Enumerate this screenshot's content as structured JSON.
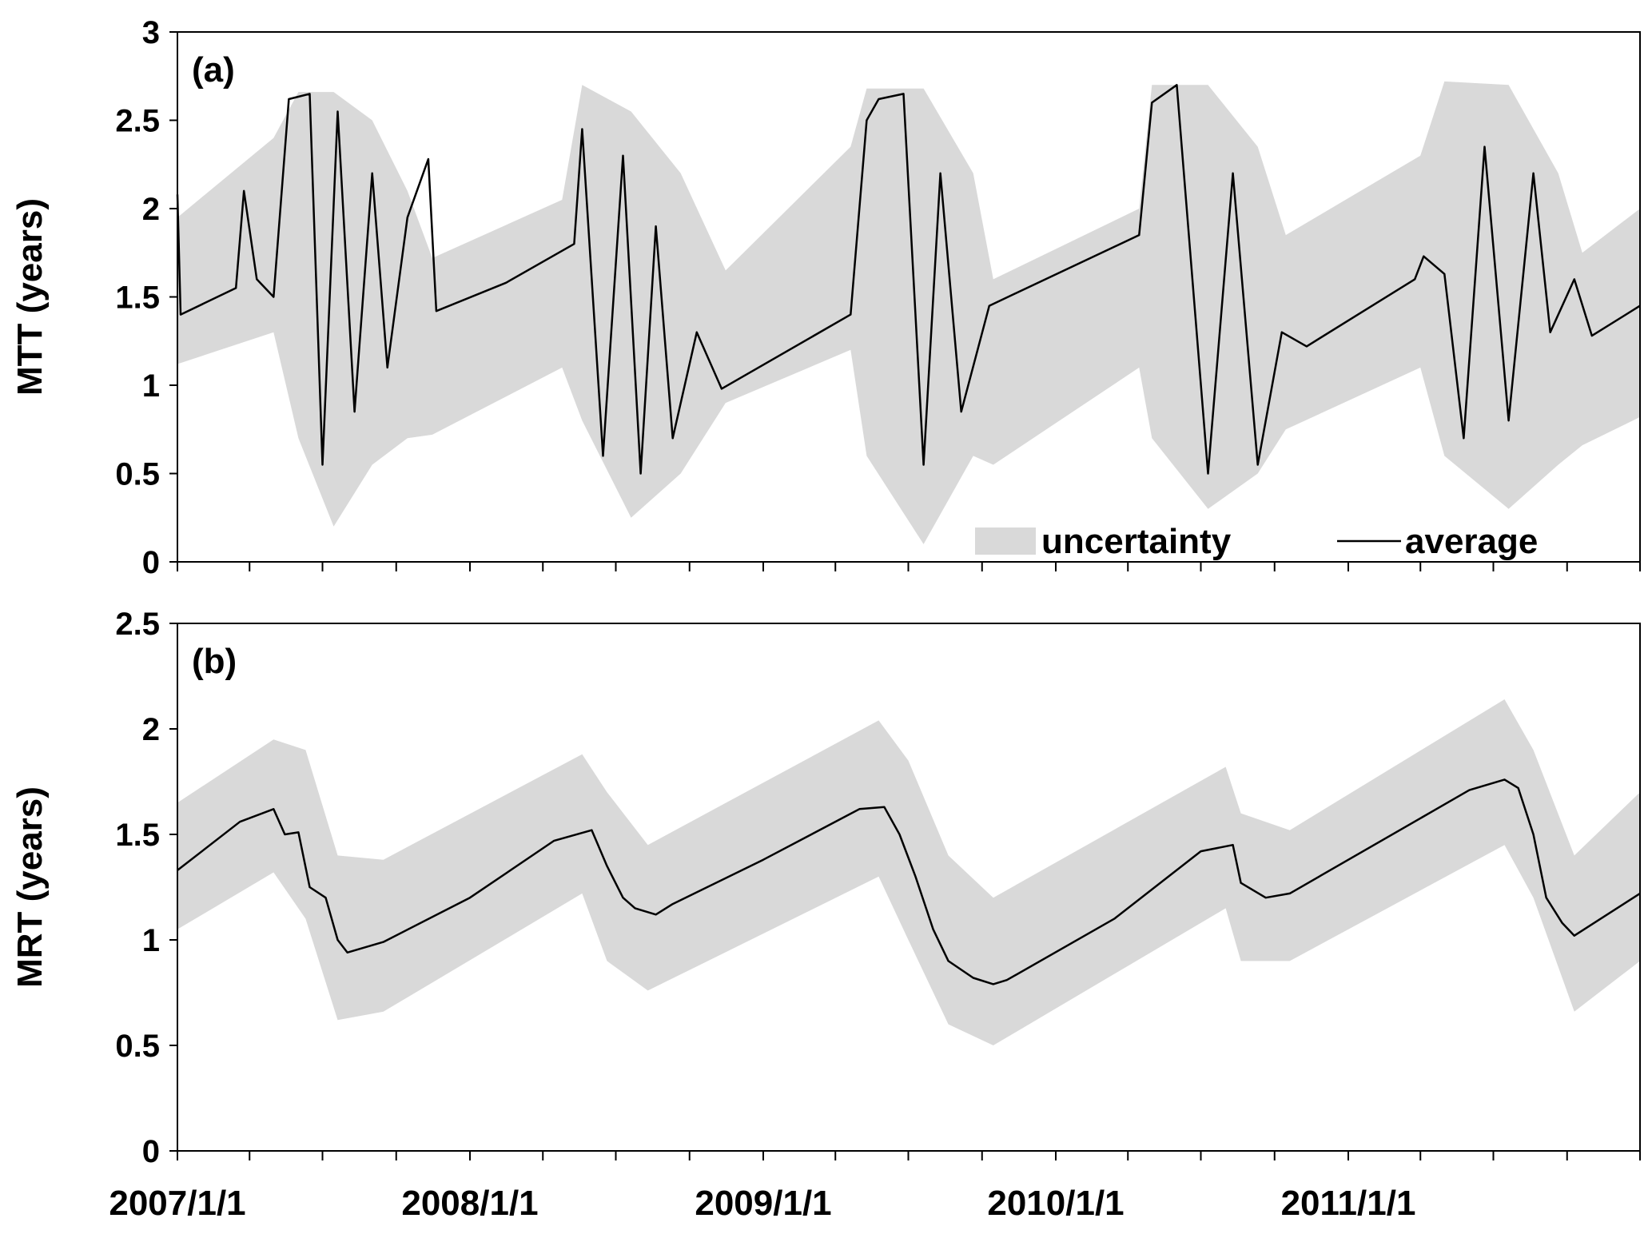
{
  "chart_data": [
    {
      "type": "line",
      "panel_label": "(a)",
      "ylabel": "MTT (years)",
      "ylim": [
        0,
        3
      ],
      "yticks": [
        "0",
        "0.5",
        "1",
        "1.5",
        "2",
        "2.5",
        "3"
      ],
      "xlim": [
        "2007/1/1",
        "2011/12/31"
      ],
      "grid": false,
      "legend": {
        "placement": "bottom-right",
        "entries": [
          {
            "label": "uncertainty",
            "style": "band",
            "color": "#d9d9d9"
          },
          {
            "label": "average",
            "style": "line",
            "color": "#000000"
          }
        ]
      },
      "series": [
        {
          "name": "average",
          "color": "#000000",
          "points": [
            {
              "x": "2007/1/1",
              "y": 2.08
            },
            {
              "x": "2007/1/5",
              "y": 1.4
            },
            {
              "x": "2007/3/15",
              "y": 1.55
            },
            {
              "x": "2007/3/25",
              "y": 2.1
            },
            {
              "x": "2007/4/10",
              "y": 1.6
            },
            {
              "x": "2007/5/1",
              "y": 1.5
            },
            {
              "x": "2007/5/20",
              "y": 2.62
            },
            {
              "x": "2007/6/15",
              "y": 2.65
            },
            {
              "x": "2007/7/1",
              "y": 0.55
            },
            {
              "x": "2007/7/20",
              "y": 2.55
            },
            {
              "x": "2007/8/10",
              "y": 0.85
            },
            {
              "x": "2007/9/1",
              "y": 2.2
            },
            {
              "x": "2007/9/20",
              "y": 1.1
            },
            {
              "x": "2007/10/15",
              "y": 1.95
            },
            {
              "x": "2007/11/10",
              "y": 2.28
            },
            {
              "x": "2007/11/20",
              "y": 1.42
            },
            {
              "x": "2008/2/15",
              "y": 1.58
            },
            {
              "x": "2008/5/10",
              "y": 1.8
            },
            {
              "x": "2008/5/20",
              "y": 2.45
            },
            {
              "x": "2008/6/15",
              "y": 0.6
            },
            {
              "x": "2008/7/10",
              "y": 2.3
            },
            {
              "x": "2008/8/1",
              "y": 0.5
            },
            {
              "x": "2008/8/20",
              "y": 1.9
            },
            {
              "x": "2008/9/10",
              "y": 0.7
            },
            {
              "x": "2008/10/10",
              "y": 1.3
            },
            {
              "x": "2008/11/10",
              "y": 0.98
            },
            {
              "x": "2009/4/20",
              "y": 1.4
            },
            {
              "x": "2009/5/10",
              "y": 2.5
            },
            {
              "x": "2009/5/25",
              "y": 2.62
            },
            {
              "x": "2009/6/25",
              "y": 2.65
            },
            {
              "x": "2009/7/20",
              "y": 0.55
            },
            {
              "x": "2009/8/10",
              "y": 2.2
            },
            {
              "x": "2009/9/5",
              "y": 0.85
            },
            {
              "x": "2009/10/10",
              "y": 1.45
            },
            {
              "x": "2010/4/15",
              "y": 1.85
            },
            {
              "x": "2010/5/1",
              "y": 2.6
            },
            {
              "x": "2010/6/1",
              "y": 2.7
            },
            {
              "x": "2010/7/10",
              "y": 0.5
            },
            {
              "x": "2010/8/10",
              "y": 2.2
            },
            {
              "x": "2010/9/10",
              "y": 0.55
            },
            {
              "x": "2010/10/10",
              "y": 1.3
            },
            {
              "x": "2010/11/10",
              "y": 1.22
            },
            {
              "x": "2011/3/25",
              "y": 1.6
            },
            {
              "x": "2011/4/5",
              "y": 1.73
            },
            {
              "x": "2011/5/1",
              "y": 1.63
            },
            {
              "x": "2011/5/25",
              "y": 0.7
            },
            {
              "x": "2011/6/20",
              "y": 2.35
            },
            {
              "x": "2011/7/20",
              "y": 0.8
            },
            {
              "x": "2011/8/20",
              "y": 2.2
            },
            {
              "x": "2011/9/10",
              "y": 1.3
            },
            {
              "x": "2011/10/10",
              "y": 1.6
            },
            {
              "x": "2011/11/1",
              "y": 1.28
            },
            {
              "x": "2011/12/31",
              "y": 1.45
            }
          ]
        }
      ],
      "uncertainty_band": [
        {
          "x": "2007/1/1",
          "low": 1.12,
          "high": 1.95
        },
        {
          "x": "2007/5/1",
          "low": 1.3,
          "high": 2.4
        },
        {
          "x": "2007/6/1",
          "low": 0.7,
          "high": 2.66
        },
        {
          "x": "2007/7/15",
          "low": 0.2,
          "high": 2.66
        },
        {
          "x": "2007/9/1",
          "low": 0.55,
          "high": 2.5
        },
        {
          "x": "2007/10/15",
          "low": 0.7,
          "high": 2.1
        },
        {
          "x": "2007/11/15",
          "low": 0.72,
          "high": 1.72
        },
        {
          "x": "2008/4/25",
          "low": 1.1,
          "high": 2.05
        },
        {
          "x": "2008/5/20",
          "low": 0.8,
          "high": 2.7
        },
        {
          "x": "2008/7/20",
          "low": 0.25,
          "high": 2.55
        },
        {
          "x": "2008/9/20",
          "low": 0.5,
          "high": 2.2
        },
        {
          "x": "2008/11/15",
          "low": 0.9,
          "high": 1.65
        },
        {
          "x": "2009/4/20",
          "low": 1.2,
          "high": 2.35
        },
        {
          "x": "2009/5/10",
          "low": 0.6,
          "high": 2.68
        },
        {
          "x": "2009/7/20",
          "low": 0.1,
          "high": 2.68
        },
        {
          "x": "2009/9/20",
          "low": 0.6,
          "high": 2.2
        },
        {
          "x": "2009/10/15",
          "low": 0.55,
          "high": 1.6
        },
        {
          "x": "2010/4/15",
          "low": 1.1,
          "high": 2.0
        },
        {
          "x": "2010/5/1",
          "low": 0.7,
          "high": 2.7
        },
        {
          "x": "2010/7/10",
          "low": 0.3,
          "high": 2.7
        },
        {
          "x": "2010/9/10",
          "low": 0.5,
          "high": 2.35
        },
        {
          "x": "2010/10/15",
          "low": 0.75,
          "high": 1.85
        },
        {
          "x": "2011/4/1",
          "low": 1.1,
          "high": 2.3
        },
        {
          "x": "2011/5/1",
          "low": 0.6,
          "high": 2.72
        },
        {
          "x": "2011/7/20",
          "low": 0.3,
          "high": 2.7
        },
        {
          "x": "2011/9/20",
          "low": 0.55,
          "high": 2.2
        },
        {
          "x": "2011/10/20",
          "low": 0.66,
          "high": 1.75
        },
        {
          "x": "2011/12/31",
          "low": 0.82,
          "high": 2.0
        }
      ]
    },
    {
      "type": "line",
      "panel_label": "(b)",
      "ylabel": "MRT (years)",
      "ylim": [
        0,
        2.5
      ],
      "yticks": [
        "0",
        "0.5",
        "1",
        "1.5",
        "2",
        "2.5"
      ],
      "xlim": [
        "2007/1/1",
        "2011/12/31"
      ],
      "xtick_labels": [
        "2007/1/1",
        "2008/1/1",
        "2009/1/1",
        "2010/1/1",
        "2011/1/1"
      ],
      "grid": false,
      "series": [
        {
          "name": "average",
          "color": "#000000",
          "points": [
            {
              "x": "2007/1/1",
              "y": 1.33
            },
            {
              "x": "2007/3/20",
              "y": 1.56
            },
            {
              "x": "2007/5/1",
              "y": 1.62
            },
            {
              "x": "2007/5/15",
              "y": 1.5
            },
            {
              "x": "2007/6/1",
              "y": 1.51
            },
            {
              "x": "2007/6/15",
              "y": 1.25
            },
            {
              "x": "2007/7/5",
              "y": 1.2
            },
            {
              "x": "2007/7/20",
              "y": 1.0
            },
            {
              "x": "2007/8/1",
              "y": 0.94
            },
            {
              "x": "2007/9/15",
              "y": 0.99
            },
            {
              "x": "2008/1/1",
              "y": 1.2
            },
            {
              "x": "2008/4/15",
              "y": 1.47
            },
            {
              "x": "2008/6/1",
              "y": 1.52
            },
            {
              "x": "2008/6/20",
              "y": 1.35
            },
            {
              "x": "2008/7/10",
              "y": 1.2
            },
            {
              "x": "2008/7/25",
              "y": 1.15
            },
            {
              "x": "2008/8/20",
              "y": 1.12
            },
            {
              "x": "2008/9/10",
              "y": 1.17
            },
            {
              "x": "2009/1/1",
              "y": 1.38
            },
            {
              "x": "2009/5/1",
              "y": 1.62
            },
            {
              "x": "2009/6/1",
              "y": 1.63
            },
            {
              "x": "2009/6/20",
              "y": 1.5
            },
            {
              "x": "2009/7/10",
              "y": 1.3
            },
            {
              "x": "2009/8/1",
              "y": 1.05
            },
            {
              "x": "2009/8/20",
              "y": 0.9
            },
            {
              "x": "2009/9/20",
              "y": 0.82
            },
            {
              "x": "2009/10/15",
              "y": 0.79
            },
            {
              "x": "2009/11/1",
              "y": 0.81
            },
            {
              "x": "2010/3/15",
              "y": 1.1
            },
            {
              "x": "2010/7/1",
              "y": 1.42
            },
            {
              "x": "2010/8/10",
              "y": 1.45
            },
            {
              "x": "2010/8/20",
              "y": 1.27
            },
            {
              "x": "2010/9/20",
              "y": 1.2
            },
            {
              "x": "2010/10/20",
              "y": 1.22
            },
            {
              "x": "2011/6/1",
              "y": 1.71
            },
            {
              "x": "2011/7/15",
              "y": 1.76
            },
            {
              "x": "2011/8/1",
              "y": 1.72
            },
            {
              "x": "2011/8/20",
              "y": 1.5
            },
            {
              "x": "2011/9/5",
              "y": 1.2
            },
            {
              "x": "2011/9/25",
              "y": 1.08
            },
            {
              "x": "2011/10/10",
              "y": 1.02
            },
            {
              "x": "2011/12/31",
              "y": 1.22
            }
          ]
        }
      ],
      "uncertainty_band": [
        {
          "x": "2007/1/1",
          "low": 1.05,
          "high": 1.65
        },
        {
          "x": "2007/5/1",
          "low": 1.32,
          "high": 1.95
        },
        {
          "x": "2007/6/10",
          "low": 1.1,
          "high": 1.9
        },
        {
          "x": "2007/7/20",
          "low": 0.62,
          "high": 1.4
        },
        {
          "x": "2007/9/15",
          "low": 0.66,
          "high": 1.38
        },
        {
          "x": "2008/5/20",
          "low": 1.22,
          "high": 1.88
        },
        {
          "x": "2008/6/20",
          "low": 0.9,
          "high": 1.7
        },
        {
          "x": "2008/8/10",
          "low": 0.76,
          "high": 1.45
        },
        {
          "x": "2009/5/25",
          "low": 1.3,
          "high": 2.04
        },
        {
          "x": "2009/7/1",
          "low": 1.0,
          "high": 1.85
        },
        {
          "x": "2009/8/20",
          "low": 0.6,
          "high": 1.4
        },
        {
          "x": "2009/10/15",
          "low": 0.5,
          "high": 1.2
        },
        {
          "x": "2010/8/1",
          "low": 1.15,
          "high": 1.82
        },
        {
          "x": "2010/8/20",
          "low": 0.9,
          "high": 1.6
        },
        {
          "x": "2010/10/20",
          "low": 0.9,
          "high": 1.52
        },
        {
          "x": "2011/7/15",
          "low": 1.45,
          "high": 2.14
        },
        {
          "x": "2011/8/20",
          "low": 1.2,
          "high": 1.9
        },
        {
          "x": "2011/10/10",
          "low": 0.66,
          "high": 1.4
        },
        {
          "x": "2011/12/31",
          "low": 0.9,
          "high": 1.7
        }
      ]
    }
  ]
}
